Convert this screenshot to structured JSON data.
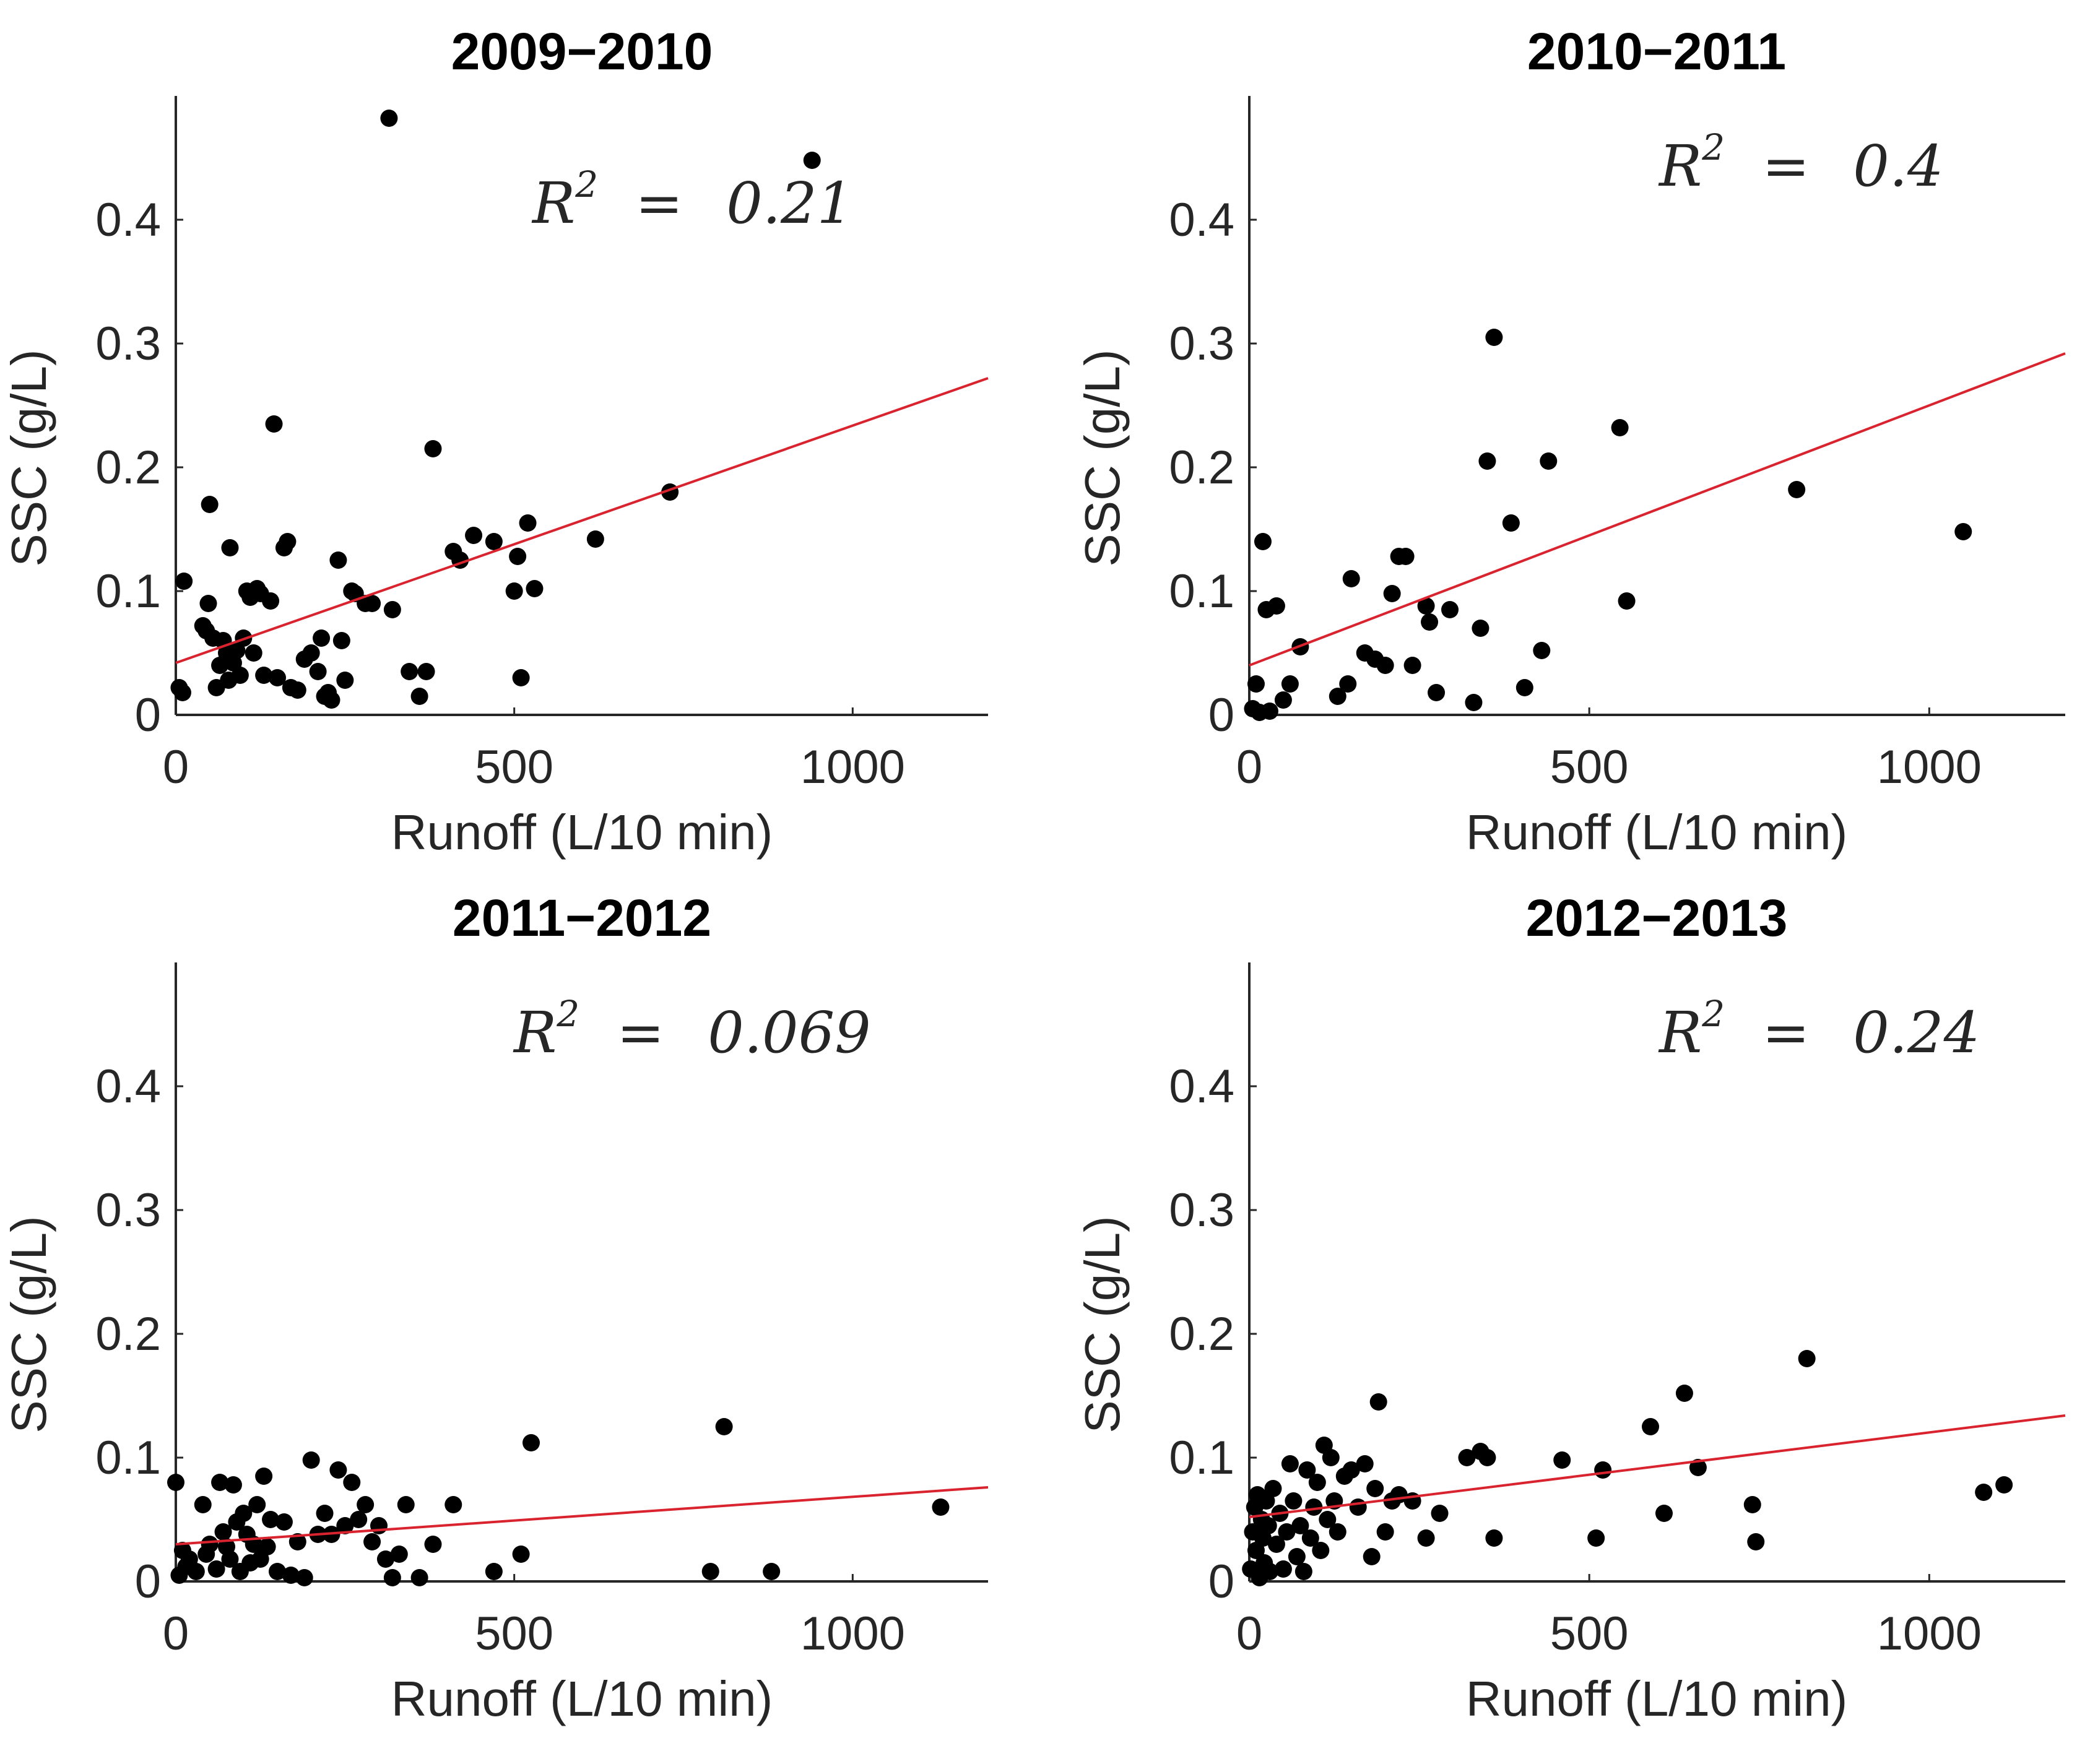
{
  "figure": {
    "marker_color": "#000000",
    "fit_line_color": "#d9232e",
    "axis_color": "#262626"
  },
  "chart_data": [
    {
      "type": "scatter",
      "title": "2009−2010",
      "xlabel": "Runoff (L/10 min)",
      "ylabel": "SSC (g/L)",
      "xlim": [
        0,
        1200
      ],
      "ylim": [
        0,
        0.5
      ],
      "xticks": [
        "0",
        "500",
        "1000"
      ],
      "yticks": [
        "0",
        "0.1",
        "0.2",
        "0.3",
        "0.4"
      ],
      "annotation": {
        "base": "R",
        "sup": "2",
        "eq": "=",
        "value": "0.21"
      },
      "fit_line": {
        "x": [
          0,
          1200
        ],
        "y": [
          0.042,
          0.272
        ]
      },
      "series": [
        {
          "x": [
            5,
            10,
            12,
            40,
            45,
            48,
            55,
            50,
            60,
            65,
            70,
            75,
            78,
            80,
            85,
            90,
            95,
            100,
            105,
            110,
            115,
            120,
            125,
            130,
            140,
            145,
            150,
            160,
            165,
            170,
            180,
            190,
            200,
            210,
            215,
            220,
            225,
            230,
            240,
            245,
            250,
            260,
            265,
            280,
            290,
            320,
            345,
            360,
            370,
            380,
            410,
            420,
            440,
            470,
            500,
            505,
            510,
            520,
            530,
            620,
            730,
            940,
            315
          ],
          "y": [
            0.022,
            0.018,
            0.108,
            0.072,
            0.068,
            0.09,
            0.062,
            0.17,
            0.022,
            0.04,
            0.06,
            0.05,
            0.028,
            0.135,
            0.042,
            0.052,
            0.032,
            0.062,
            0.1,
            0.095,
            0.05,
            0.102,
            0.098,
            0.032,
            0.092,
            0.235,
            0.03,
            0.135,
            0.14,
            0.022,
            0.02,
            0.045,
            0.05,
            0.035,
            0.062,
            0.015,
            0.018,
            0.012,
            0.125,
            0.06,
            0.028,
            0.1,
            0.098,
            0.09,
            0.09,
            0.085,
            0.035,
            0.015,
            0.035,
            0.215,
            0.132,
            0.125,
            0.145,
            0.14,
            0.1,
            0.128,
            0.03,
            0.155,
            0.102,
            0.142,
            0.18,
            0.448,
            0.482
          ]
        }
      ]
    },
    {
      "type": "scatter",
      "title": "2010−2011",
      "xlabel": "Runoff  (L/10 min)",
      "ylabel": "SSC (g/L)",
      "xlim": [
        0,
        1200
      ],
      "ylim": [
        0,
        0.5
      ],
      "xticks": [
        "0",
        "500",
        "1000"
      ],
      "yticks": [
        "0",
        "0.1",
        "0.2",
        "0.3",
        "0.4"
      ],
      "annotation": {
        "base": "R",
        "sup": "2",
        "eq": "=",
        "value": "0.4"
      },
      "fit_line": {
        "x": [
          0,
          1200
        ],
        "y": [
          0.04,
          0.292
        ]
      },
      "series": [
        {
          "x": [
            5,
            10,
            15,
            20,
            25,
            30,
            40,
            50,
            60,
            75,
            130,
            145,
            150,
            170,
            185,
            200,
            210,
            220,
            230,
            240,
            260,
            265,
            275,
            295,
            330,
            340,
            350,
            360,
            385,
            405,
            430,
            440,
            545,
            555,
            805,
            1050
          ],
          "y": [
            0.005,
            0.025,
            0.002,
            0.14,
            0.085,
            0.003,
            0.088,
            0.012,
            0.025,
            0.055,
            0.015,
            0.025,
            0.11,
            0.05,
            0.045,
            0.04,
            0.098,
            0.128,
            0.128,
            0.04,
            0.088,
            0.075,
            0.018,
            0.085,
            0.01,
            0.07,
            0.205,
            0.305,
            0.155,
            0.022,
            0.052,
            0.205,
            0.232,
            0.092,
            0.182,
            0.148
          ]
        }
      ]
    },
    {
      "type": "scatter",
      "title": "2011−2012",
      "xlabel": "Runoff (L/10 min)",
      "ylabel": "SSC (g/L)",
      "xlim": [
        0,
        1200
      ],
      "ylim": [
        0,
        0.5
      ],
      "xticks": [
        "0",
        "500",
        "1000"
      ],
      "yticks": [
        "0",
        "0.1",
        "0.2",
        "0.3",
        "0.4"
      ],
      "annotation": {
        "base": "R",
        "sup": "2",
        "eq": "=",
        "value": "0.069"
      },
      "fit_line": {
        "x": [
          0,
          1200
        ],
        "y": [
          0.03,
          0.076
        ]
      },
      "series": [
        {
          "x": [
            0,
            5,
            10,
            15,
            20,
            30,
            40,
            45,
            50,
            60,
            65,
            70,
            75,
            80,
            85,
            90,
            95,
            100,
            105,
            110,
            115,
            120,
            125,
            130,
            135,
            140,
            150,
            160,
            170,
            180,
            190,
            200,
            210,
            220,
            230,
            240,
            250,
            260,
            270,
            280,
            290,
            300,
            310,
            320,
            330,
            340,
            360,
            380,
            410,
            470,
            510,
            525,
            790,
            810,
            880,
            1130
          ],
          "y": [
            0.08,
            0.005,
            0.025,
            0.012,
            0.018,
            0.008,
            0.062,
            0.022,
            0.03,
            0.01,
            0.08,
            0.04,
            0.028,
            0.018,
            0.078,
            0.048,
            0.008,
            0.055,
            0.038,
            0.015,
            0.03,
            0.062,
            0.018,
            0.085,
            0.028,
            0.05,
            0.008,
            0.048,
            0.005,
            0.032,
            0.003,
            0.098,
            0.038,
            0.055,
            0.038,
            0.09,
            0.045,
            0.08,
            0.05,
            0.062,
            0.032,
            0.045,
            0.018,
            0.003,
            0.022,
            0.062,
            0.003,
            0.03,
            0.062,
            0.008,
            0.022,
            0.112,
            0.008,
            0.125,
            0.008,
            0.06
          ]
        }
      ]
    },
    {
      "type": "scatter",
      "title": "2012−2013",
      "xlabel": "Runoff  (L/10 min)",
      "ylabel": "SSC (g/L)",
      "xlim": [
        0,
        1200
      ],
      "ylim": [
        0,
        0.5
      ],
      "xticks": [
        "0",
        "500",
        "1000"
      ],
      "yticks": [
        "0",
        "0.1",
        "0.2",
        "0.3",
        "0.4"
      ],
      "annotation": {
        "base": "R",
        "sup": "2",
        "eq": "=",
        "value": "0.24"
      },
      "fit_line": {
        "x": [
          0,
          1200
        ],
        "y": [
          0.052,
          0.134
        ]
      },
      "series": [
        {
          "x": [
            2,
            5,
            8,
            10,
            12,
            15,
            18,
            20,
            22,
            25,
            28,
            30,
            35,
            40,
            45,
            50,
            55,
            60,
            65,
            70,
            75,
            80,
            85,
            90,
            95,
            100,
            105,
            110,
            115,
            120,
            125,
            130,
            140,
            150,
            160,
            170,
            180,
            185,
            190,
            200,
            210,
            220,
            240,
            260,
            280,
            320,
            340,
            350,
            360,
            460,
            510,
            520,
            590,
            610,
            640,
            660,
            740,
            745,
            820,
            1080,
            1110
          ],
          "y": [
            0.01,
            0.04,
            0.06,
            0.025,
            0.07,
            0.003,
            0.05,
            0.035,
            0.015,
            0.065,
            0.045,
            0.008,
            0.075,
            0.03,
            0.055,
            0.01,
            0.04,
            0.095,
            0.065,
            0.02,
            0.045,
            0.008,
            0.09,
            0.035,
            0.06,
            0.08,
            0.025,
            0.11,
            0.05,
            0.1,
            0.065,
            0.04,
            0.085,
            0.09,
            0.06,
            0.095,
            0.02,
            0.075,
            0.145,
            0.04,
            0.065,
            0.07,
            0.065,
            0.035,
            0.055,
            0.1,
            0.105,
            0.1,
            0.035,
            0.098,
            0.035,
            0.09,
            0.125,
            0.055,
            0.152,
            0.092,
            0.062,
            0.032,
            0.18,
            0.072,
            0.078
          ]
        }
      ]
    }
  ]
}
